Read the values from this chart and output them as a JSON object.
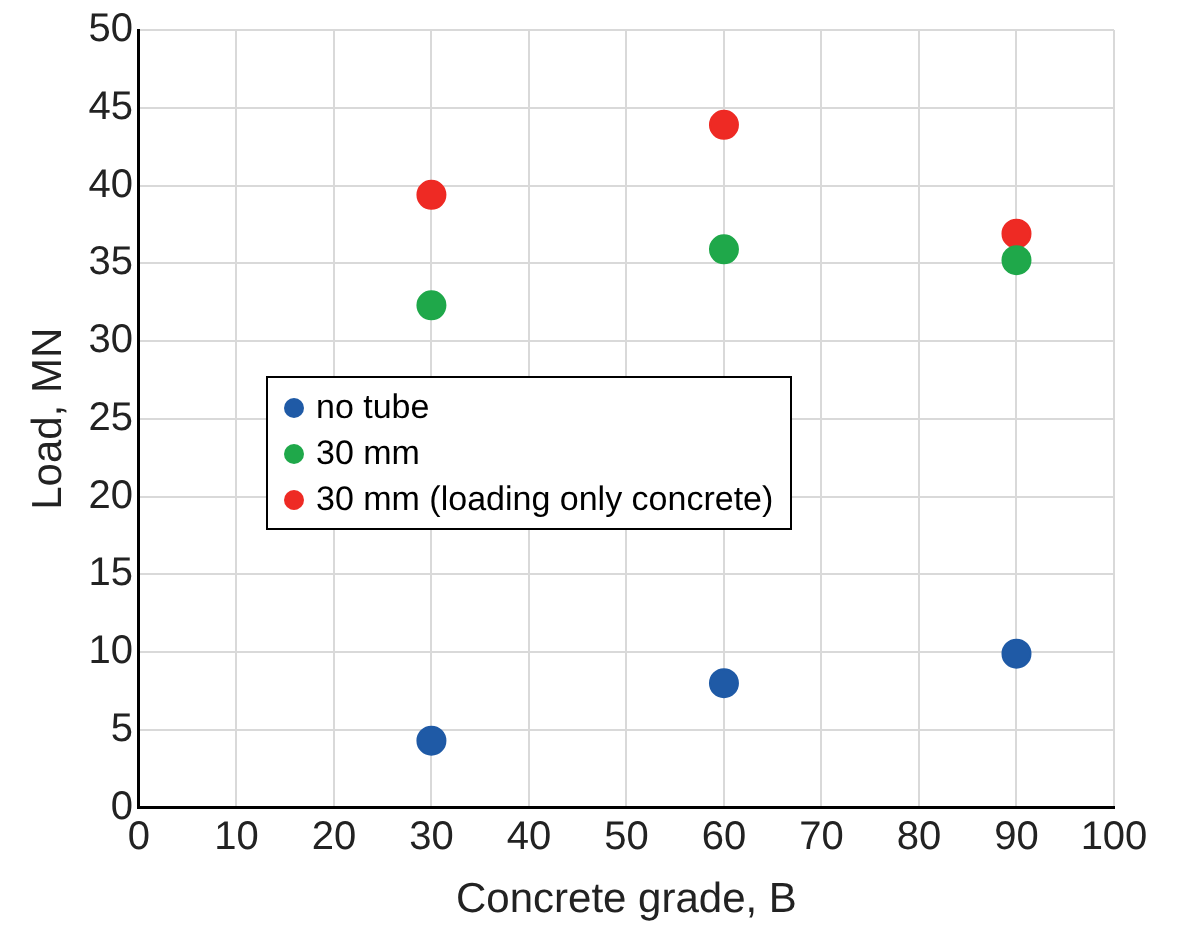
{
  "chart_data": {
    "type": "scatter",
    "xlabel": "Concrete grade, B",
    "ylabel": "Load, MN",
    "x": [
      30,
      60,
      90
    ],
    "series": [
      {
        "name": "no tube",
        "color": "#1f5aa6",
        "values": [
          4.3,
          8,
          9.9
        ]
      },
      {
        "name": "30 mm",
        "color": "#1fa84a",
        "values": [
          32.3,
          35.9,
          35.2
        ]
      },
      {
        "name": "30 mm (loading only concrete)",
        "color": "#ee2a24",
        "values": [
          39.4,
          43.9,
          36.9
        ]
      }
    ],
    "xlim": [
      0,
      100
    ],
    "xticks": [
      0,
      10,
      20,
      30,
      40,
      50,
      60,
      70,
      80,
      90,
      100
    ],
    "ylim": [
      0,
      50
    ],
    "yticks": [
      0,
      5,
      10,
      15,
      20,
      25,
      30,
      35,
      40,
      45,
      50
    ],
    "grid": true,
    "legend": "left",
    "marker": "circle"
  }
}
